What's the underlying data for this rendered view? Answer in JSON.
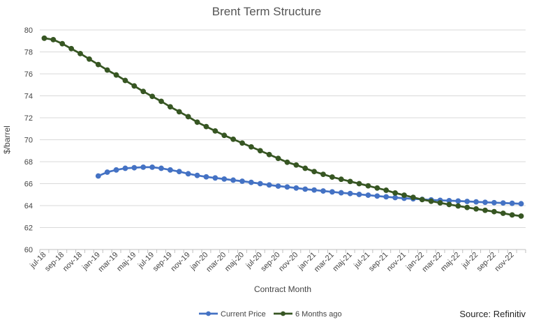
{
  "chart_data": {
    "type": "line",
    "title": "Brent Term Structure",
    "xlabel": "Contract Month",
    "ylabel": "$/barrel",
    "ylim": [
      60,
      80
    ],
    "yticks": [
      60,
      62,
      64,
      66,
      68,
      70,
      72,
      74,
      76,
      78,
      80
    ],
    "grid": true,
    "legend": "bottom-center",
    "source_label": "Source: Refinitiv",
    "x": [
      "jul-18",
      "aug-18",
      "sep-18",
      "okt-18",
      "nov-18",
      "dec-18",
      "jan-19",
      "feb-19",
      "mar-19",
      "apr-19",
      "maj-19",
      "jun-19",
      "jul-19",
      "aug-19",
      "sep-19",
      "okt-19",
      "nov-19",
      "dec-19",
      "jan-20",
      "feb-20",
      "mar-20",
      "apr-20",
      "maj-20",
      "jun-20",
      "jul-20",
      "aug-20",
      "sep-20",
      "okt-20",
      "nov-20",
      "dec-20",
      "jan-21",
      "feb-21",
      "mar-21",
      "apr-21",
      "maj-21",
      "jun-21",
      "jul-21",
      "aug-21",
      "sep-21",
      "okt-21",
      "nov-21",
      "dec-21",
      "jan-22",
      "feb-22",
      "mar-22",
      "apr-22",
      "maj-22",
      "jun-22",
      "jul-22",
      "aug-22",
      "sep-22",
      "okt-22",
      "nov-22",
      "dec-22"
    ],
    "x_tick_labels": [
      "jul-18",
      "sep-18",
      "nov-18",
      "jan-19",
      "mar-19",
      "maj-19",
      "jul-19",
      "sep-19",
      "nov-19",
      "jan-20",
      "mar-20",
      "maj-20",
      "jul-20",
      "sep-20",
      "nov-20",
      "jan-21",
      "mar-21",
      "maj-21",
      "jul-21",
      "sep-21",
      "nov-21",
      "jan-22",
      "mar-22",
      "maj-22",
      "jul-22",
      "sep-22",
      "nov-22"
    ],
    "series": [
      {
        "name": "Current Price",
        "color": "#4472C4",
        "values": [
          null,
          null,
          null,
          null,
          null,
          null,
          66.7,
          67.05,
          67.25,
          67.4,
          67.45,
          67.5,
          67.5,
          67.4,
          67.25,
          67.1,
          66.9,
          66.75,
          66.62,
          66.52,
          66.42,
          66.32,
          66.22,
          66.12,
          66.0,
          65.88,
          65.78,
          65.7,
          65.6,
          65.5,
          65.42,
          65.33,
          65.25,
          65.17,
          65.1,
          65.02,
          64.95,
          64.87,
          64.8,
          64.73,
          64.67,
          64.62,
          64.57,
          64.52,
          64.48,
          64.45,
          64.42,
          64.38,
          64.34,
          64.3,
          64.27,
          64.24,
          64.21,
          64.17
        ]
      },
      {
        "name": "6 Months ago",
        "color": "#375623",
        "values": [
          79.25,
          79.12,
          78.75,
          78.3,
          77.85,
          77.35,
          76.85,
          76.35,
          75.9,
          75.4,
          74.9,
          74.4,
          73.95,
          73.5,
          73.0,
          72.55,
          72.1,
          71.6,
          71.2,
          70.8,
          70.4,
          70.05,
          69.7,
          69.35,
          69.0,
          68.65,
          68.3,
          67.95,
          67.7,
          67.4,
          67.1,
          66.85,
          66.6,
          66.4,
          66.2,
          66.0,
          65.8,
          65.6,
          65.4,
          65.15,
          64.95,
          64.75,
          64.55,
          64.4,
          64.25,
          64.1,
          63.97,
          63.83,
          63.7,
          63.57,
          63.45,
          63.3,
          63.15,
          63.05
        ]
      }
    ]
  }
}
